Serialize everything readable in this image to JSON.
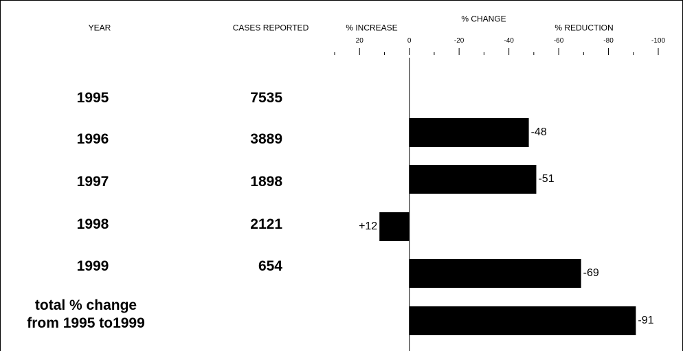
{
  "chart_data": {
    "type": "bar",
    "column_headers": [
      "YEAR",
      "CASES REPORTED"
    ],
    "axis_title": "% CHANGE",
    "increase_label": "% INCREASE",
    "reduction_label": "% REDUCTION",
    "categories": [
      "1995",
      "1996",
      "1997",
      "1998",
      "1999",
      "total % change\nfrom 1995 to1999"
    ],
    "cases": [
      7535,
      3889,
      1898,
      2121,
      654,
      null
    ],
    "values": [
      null,
      -48,
      -51,
      12,
      -69,
      -91
    ],
    "value_labels": [
      null,
      "-48",
      "-51",
      "+12",
      "-69",
      "-91"
    ],
    "color": "#000000",
    "xlim": [
      30,
      -100
    ],
    "xticks": [
      20,
      0,
      -20,
      -40,
      -60,
      -80,
      -100
    ],
    "xminor_ticks": [
      30,
      10,
      -10,
      -30,
      -50,
      -70,
      -90
    ]
  }
}
